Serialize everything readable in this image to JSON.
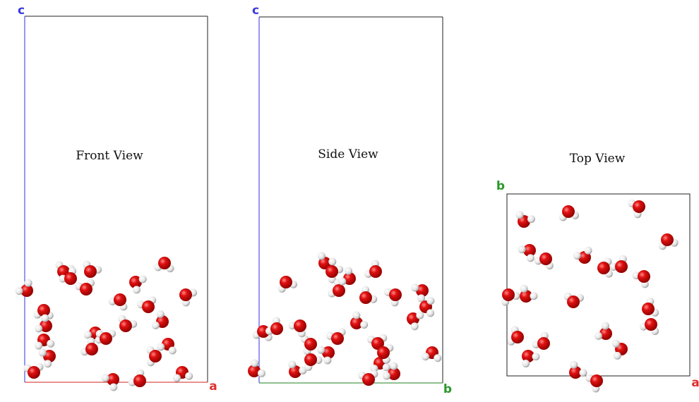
{
  "views": [
    {
      "title": "Front View",
      "axes": {
        "vertical": "c",
        "horizontal": "a"
      }
    },
    {
      "title": "Side View",
      "axes": {
        "vertical": "c",
        "horizontal": "b"
      }
    },
    {
      "title": "Top View",
      "axes": {
        "vertical": "b",
        "horizontal": "a"
      }
    }
  ]
}
